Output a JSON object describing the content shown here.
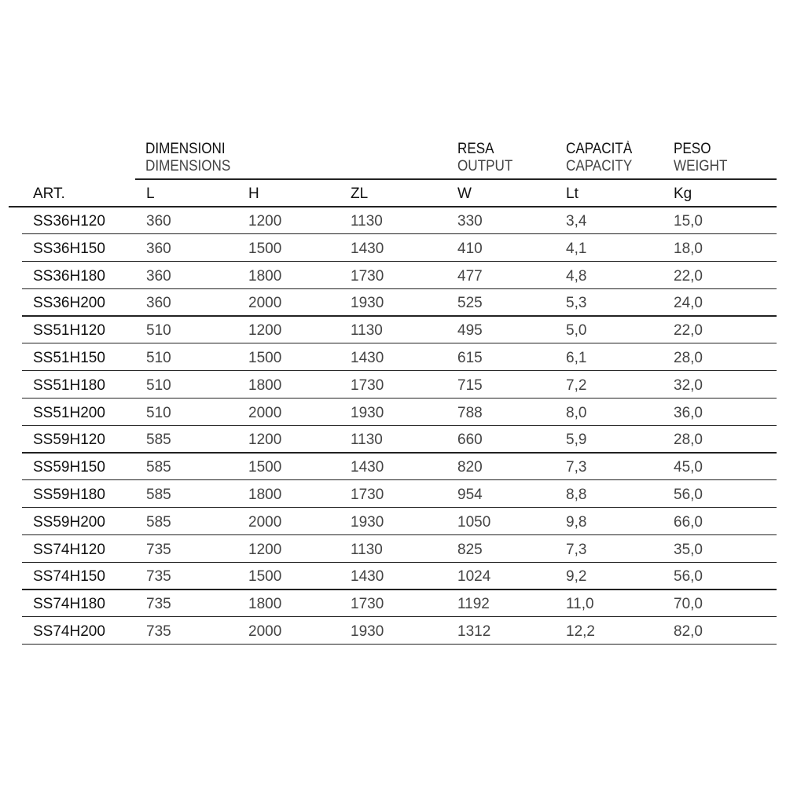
{
  "groups": {
    "dimensioni": {
      "it": "DIMENSIONI",
      "en": "DIMENSIONS"
    },
    "resa": {
      "it": "RESA",
      "en": "OUTPUT"
    },
    "capacita": {
      "it": "CAPACITÀ",
      "en": "CAPACITY"
    },
    "peso": {
      "it": "PESO",
      "en": "WEIGHT"
    }
  },
  "columns": [
    "ART.",
    "L",
    "H",
    "ZL",
    "W",
    "Lt",
    "Kg"
  ],
  "rows": [
    [
      "SS36H120",
      "360",
      "1200",
      "1130",
      "330",
      "3,4",
      "15,0"
    ],
    [
      "SS36H150",
      "360",
      "1500",
      "1430",
      "410",
      "4,1",
      "18,0"
    ],
    [
      "SS36H180",
      "360",
      "1800",
      "1730",
      "477",
      "4,8",
      "22,0"
    ],
    [
      "SS36H200",
      "360",
      "2000",
      "1930",
      "525",
      "5,3",
      "24,0"
    ],
    [
      "SS51H120",
      "510",
      "1200",
      "1130",
      "495",
      "5,0",
      "22,0"
    ],
    [
      "SS51H150",
      "510",
      "1500",
      "1430",
      "615",
      "6,1",
      "28,0"
    ],
    [
      "SS51H180",
      "510",
      "1800",
      "1730",
      "715",
      "7,2",
      "32,0"
    ],
    [
      "SS51H200",
      "510",
      "2000",
      "1930",
      "788",
      "8,0",
      "36,0"
    ],
    [
      "SS59H120",
      "585",
      "1200",
      "1130",
      "660",
      "5,9",
      "28,0"
    ],
    [
      "SS59H150",
      "585",
      "1500",
      "1430",
      "820",
      "7,3",
      "45,0"
    ],
    [
      "SS59H180",
      "585",
      "1800",
      "1730",
      "954",
      "8,8",
      "56,0"
    ],
    [
      "SS59H200",
      "585",
      "2000",
      "1930",
      "1050",
      "9,8",
      "66,0"
    ],
    [
      "SS74H120",
      "735",
      "1200",
      "1130",
      "825",
      "7,3",
      "35,0"
    ],
    [
      "SS74H150",
      "735",
      "1500",
      "1430",
      "1024",
      "9,2",
      "56,0"
    ],
    [
      "SS74H180",
      "735",
      "1800",
      "1730",
      "1192",
      "11,0",
      "70,0"
    ],
    [
      "SS74H200",
      "735",
      "2000",
      "1930",
      "1312",
      "12,2",
      "82,0"
    ]
  ]
}
